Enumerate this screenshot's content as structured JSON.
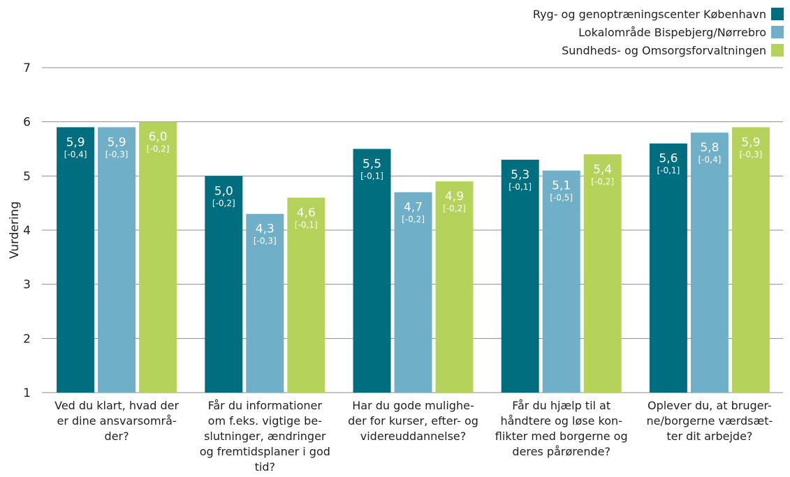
{
  "chart_data": {
    "type": "bar",
    "ylabel": "Vurdering",
    "ylim": [
      1,
      7
    ],
    "yticks": [
      "1",
      "2",
      "3",
      "4",
      "5",
      "6",
      "7"
    ],
    "grid": true,
    "legend_position": "top-right",
    "categories": [
      [
        "Ved du klart, hvad der",
        "er dine ansvarsområ-",
        "der?"
      ],
      [
        "Får du informationer",
        "om f.eks. vigtige be-",
        "slutninger, ændringer",
        "og fremtidsplaner i god",
        "tid?"
      ],
      [
        "Har du gode mulighe-",
        "der for kurser, efter- og",
        "videreuddannelse?"
      ],
      [
        "Får du hjælp til at",
        "håndtere og løse kon-",
        "flikter med borgerne og",
        "deres pårørende?"
      ],
      [
        "Oplever du, at bruger-",
        "ne/borgerne værdsæt-",
        "ter dit arbejde?"
      ]
    ],
    "series": [
      {
        "name": "Ryg- og genoptræningscenter København",
        "color": "#006e7f",
        "values": [
          5.9,
          5.0,
          5.5,
          5.3,
          5.6
        ],
        "labels": [
          "5,9",
          "5,0",
          "5,5",
          "5,3",
          "5,6"
        ],
        "intervals": [
          "[-0,4]",
          "[-0,2]",
          "[-0,1]",
          "[-0,1]",
          "[-0,1]"
        ]
      },
      {
        "name": "Lokalområde Bispebjerg/Nørrebro",
        "color": "#6fafc7",
        "values": [
          5.9,
          4.3,
          4.7,
          5.1,
          5.8
        ],
        "labels": [
          "5,9",
          "4,3",
          "4,7",
          "5,1",
          "5,8"
        ],
        "intervals": [
          "[-0,3]",
          "[-0,3]",
          "[-0,2]",
          "[-0,5]",
          "[-0,4]"
        ]
      },
      {
        "name": "Sundheds- og Omsorgsforvaltningen",
        "color": "#b5d35a",
        "values": [
          6.0,
          4.6,
          4.9,
          5.4,
          5.9
        ],
        "labels": [
          "6,0",
          "4,6",
          "4,9",
          "5,4",
          "5,9"
        ],
        "intervals": [
          "[-0,2]",
          "[-0,1]",
          "[-0,2]",
          "[-0,2]",
          "[-0,3]"
        ]
      }
    ]
  }
}
